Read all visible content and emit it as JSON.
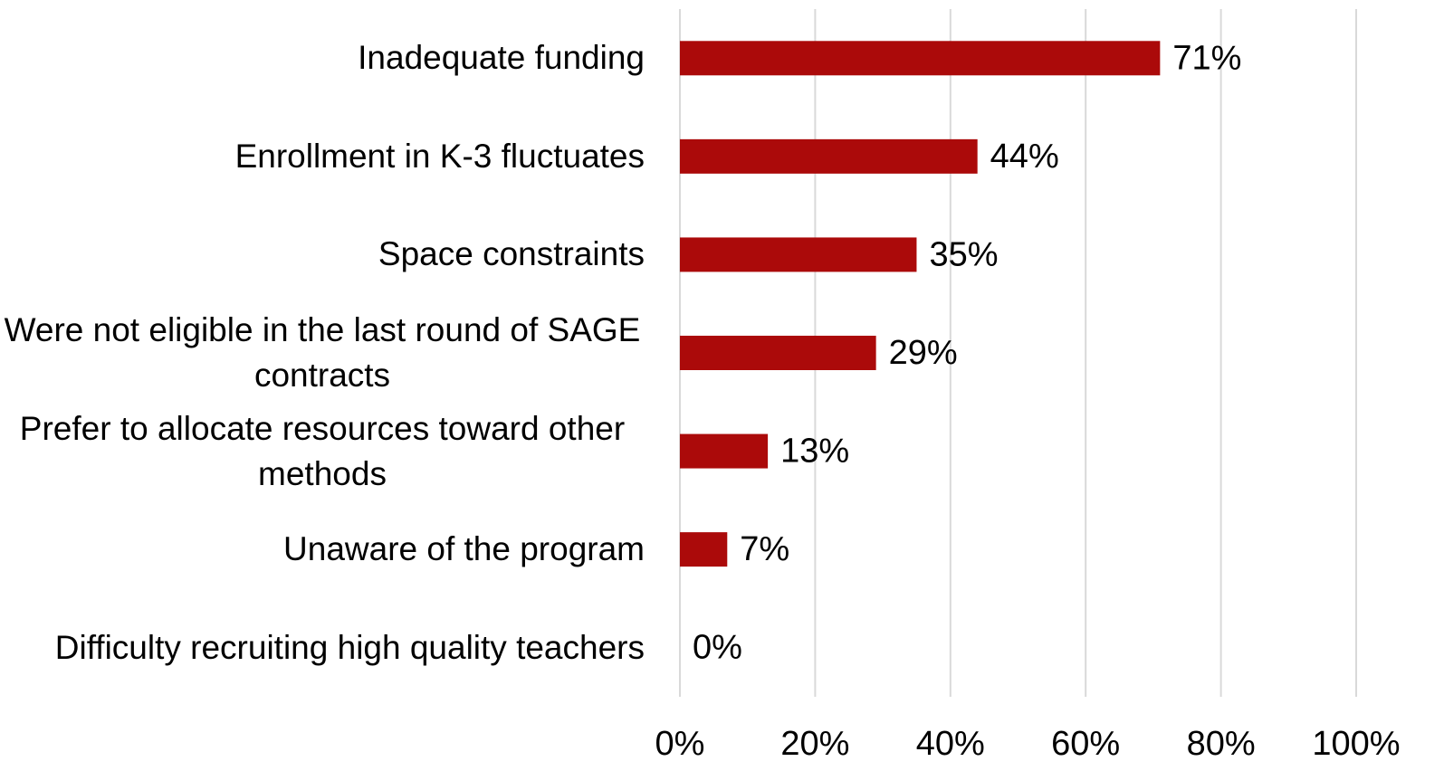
{
  "chart_data": {
    "type": "bar",
    "orientation": "horizontal",
    "categories": [
      "Inadequate funding",
      "Enrollment in K-3 fluctuates",
      "Space constraints",
      "Were not eligible in the last round of SAGE contracts",
      "Prefer to allocate resources toward other methods",
      "Unaware of the program",
      "Difficulty recruiting high quality teachers"
    ],
    "values": [
      71,
      44,
      35,
      29,
      13,
      7,
      0
    ],
    "value_labels": [
      "71%",
      "44%",
      "35%",
      "29%",
      "13%",
      "7%",
      "0%"
    ],
    "color": "#ab0a0a",
    "xlim": [
      0,
      100
    ],
    "xticks": [
      {
        "value": 0,
        "label": "0%"
      },
      {
        "value": 20,
        "label": "20%"
      },
      {
        "value": 40,
        "label": "40%"
      },
      {
        "value": 60,
        "label": "60%"
      },
      {
        "value": 80,
        "label": "80%"
      },
      {
        "value": 100,
        "label": "100%"
      }
    ],
    "grid": true
  }
}
